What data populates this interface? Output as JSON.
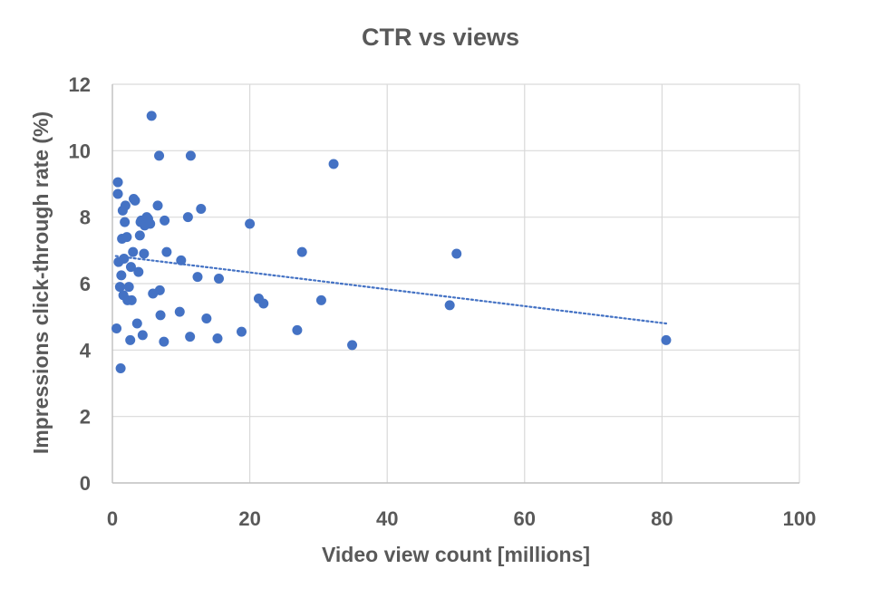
{
  "chart_data": {
    "type": "scatter",
    "title": "CTR vs views",
    "xlabel": "Video view count [millions]",
    "ylabel": "Impressions click-through rate (%)",
    "xlim": [
      0,
      100
    ],
    "ylim": [
      0,
      12
    ],
    "x_ticks": [
      "0",
      "20",
      "40",
      "60",
      "80",
      "100"
    ],
    "y_ticks": [
      "0",
      "2",
      "4",
      "6",
      "8",
      "10",
      "12"
    ],
    "x_tick_values": [
      0,
      20,
      40,
      60,
      80,
      100
    ],
    "y_tick_values": [
      0,
      2,
      4,
      6,
      8,
      10,
      12
    ],
    "grid": true,
    "legend": "none",
    "colors": {
      "marker": "#4472C4",
      "trendline": "#4472C4",
      "grid": "#D9D9D9",
      "text": "#595959"
    },
    "series": [
      {
        "x": [
          0.6,
          0.8,
          0.8,
          0.9,
          1.1,
          1.2,
          1.3,
          1.4,
          1.5,
          1.6,
          1.7,
          1.8,
          1.9,
          2.1,
          2.2,
          2.4,
          2.6,
          2.7,
          2.8,
          3.0,
          3.1,
          3.3,
          3.6,
          3.8,
          4.0,
          4.1,
          4.2,
          4.4,
          4.6,
          4.7,
          5.0,
          5.2,
          5.5,
          5.7,
          5.9,
          6.6,
          6.8,
          6.9,
          7.0,
          7.5,
          7.6,
          7.9,
          9.8,
          10.0,
          11.0,
          11.3,
          11.4,
          12.4,
          12.9,
          13.7,
          15.3,
          15.5,
          18.8,
          20.0,
          21.3,
          22.0,
          26.9,
          27.6,
          30.4,
          32.2,
          34.9,
          49.1,
          50.1,
          80.6
        ],
        "y": [
          4.65,
          8.7,
          9.05,
          6.65,
          5.9,
          3.45,
          6.25,
          7.35,
          8.2,
          5.65,
          6.75,
          7.85,
          8.35,
          7.4,
          5.5,
          5.9,
          4.3,
          6.5,
          5.5,
          6.95,
          8.55,
          8.5,
          4.8,
          6.35,
          7.45,
          7.85,
          7.9,
          4.45,
          6.9,
          7.75,
          8.0,
          7.95,
          7.8,
          11.05,
          5.7,
          8.35,
          9.85,
          5.8,
          5.05,
          4.25,
          7.9,
          6.95,
          5.15,
          6.7,
          8.0,
          4.4,
          9.85,
          6.2,
          8.25,
          4.95,
          4.35,
          6.15,
          4.55,
          7.8,
          5.55,
          5.4,
          4.6,
          6.95,
          5.5,
          9.6,
          4.15,
          5.35,
          6.9,
          4.3
        ]
      }
    ],
    "trendline": {
      "type": "linear",
      "style": "dotted",
      "x": [
        0.5,
        80.6
      ],
      "y": [
        6.83,
        4.8
      ]
    }
  }
}
